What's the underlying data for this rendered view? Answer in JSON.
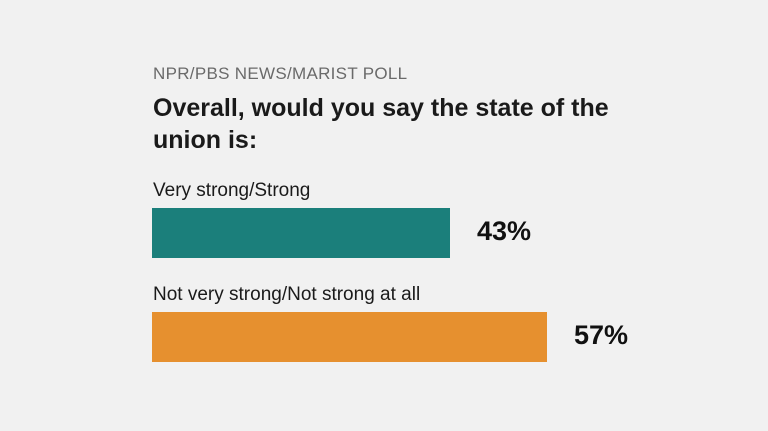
{
  "chart_data": {
    "type": "bar",
    "orientation": "horizontal",
    "source": "NPR/PBS NEWS/MARIST POLL",
    "title": "Overall, would you say the state of the union is:",
    "categories": [
      "Very strong/Strong",
      "Not very strong/Not strong at all"
    ],
    "values": [
      43,
      57
    ],
    "value_labels": [
      "43%",
      "57%"
    ],
    "colors": [
      "#1b7f7b",
      "#e6902f"
    ]
  }
}
